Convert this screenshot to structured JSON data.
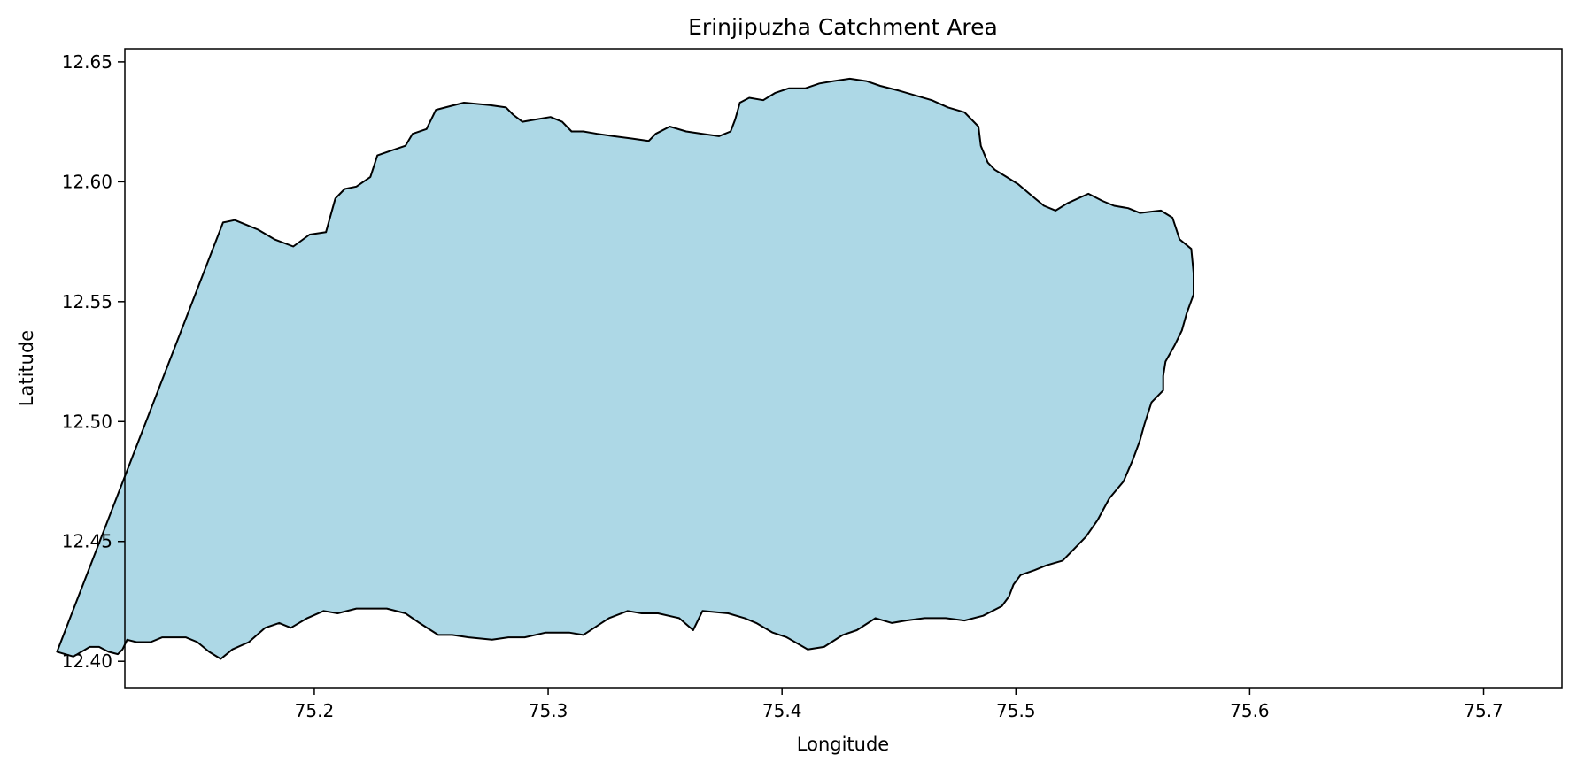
{
  "chart_data": {
    "type": "map",
    "title": "Erinjipuzha Catchment Area",
    "xlabel": "Longitude",
    "ylabel": "Latitude",
    "xlim": [
      75.119,
      75.7335
    ],
    "ylim": [
      12.389,
      12.6555
    ],
    "x_ticks": [
      75.2,
      75.3,
      75.4,
      75.5,
      75.6,
      75.7
    ],
    "x_tick_labels": [
      "75.2",
      "75.3",
      "75.4",
      "75.5",
      "75.6",
      "75.7"
    ],
    "y_ticks": [
      12.4,
      12.45,
      12.5,
      12.55,
      12.6,
      12.65
    ],
    "y_tick_labels": [
      "12.40",
      "12.45",
      "12.50",
      "12.55",
      "12.60",
      "12.65"
    ],
    "grid": false,
    "fill_color": "#add8e6",
    "edge_color": "#000000",
    "polygon_lonlat": [
      [
        75.161,
        12.583
      ],
      [
        75.166,
        12.584
      ],
      [
        75.171,
        12.582
      ],
      [
        75.176,
        12.58
      ],
      [
        75.183,
        12.576
      ],
      [
        75.191,
        12.573
      ],
      [
        75.198,
        12.578
      ],
      [
        75.205,
        12.579
      ],
      [
        75.207,
        12.586
      ],
      [
        75.209,
        12.593
      ],
      [
        75.213,
        12.597
      ],
      [
        75.218,
        12.598
      ],
      [
        75.224,
        12.602
      ],
      [
        75.227,
        12.611
      ],
      [
        75.233,
        12.613
      ],
      [
        75.239,
        12.615
      ],
      [
        75.242,
        12.62
      ],
      [
        75.248,
        12.622
      ],
      [
        75.252,
        12.63
      ],
      [
        75.264,
        12.633
      ],
      [
        75.275,
        12.632
      ],
      [
        75.282,
        12.631
      ],
      [
        75.285,
        12.628
      ],
      [
        75.289,
        12.625
      ],
      [
        75.295,
        12.626
      ],
      [
        75.301,
        12.627
      ],
      [
        75.306,
        12.625
      ],
      [
        75.31,
        12.621
      ],
      [
        75.315,
        12.621
      ],
      [
        75.321,
        12.62
      ],
      [
        75.328,
        12.619
      ],
      [
        75.336,
        12.618
      ],
      [
        75.343,
        12.617
      ],
      [
        75.346,
        12.62
      ],
      [
        75.352,
        12.623
      ],
      [
        75.359,
        12.621
      ],
      [
        75.366,
        12.62
      ],
      [
        75.373,
        12.619
      ],
      [
        75.378,
        12.621
      ],
      [
        75.38,
        12.626
      ],
      [
        75.382,
        12.633
      ],
      [
        75.386,
        12.635
      ],
      [
        75.392,
        12.634
      ],
      [
        75.397,
        12.637
      ],
      [
        75.403,
        12.639
      ],
      [
        75.41,
        12.639
      ],
      [
        75.416,
        12.641
      ],
      [
        75.422,
        12.642
      ],
      [
        75.429,
        12.643
      ],
      [
        75.436,
        12.642
      ],
      [
        75.442,
        12.64
      ],
      [
        75.45,
        12.638
      ],
      [
        75.457,
        12.636
      ],
      [
        75.464,
        12.634
      ],
      [
        75.471,
        12.631
      ],
      [
        75.478,
        12.629
      ],
      [
        75.484,
        12.623
      ],
      [
        75.485,
        12.615
      ],
      [
        75.488,
        12.608
      ],
      [
        75.491,
        12.605
      ],
      [
        75.496,
        12.602
      ],
      [
        75.501,
        12.599
      ],
      [
        75.507,
        12.594
      ],
      [
        75.512,
        12.59
      ],
      [
        75.517,
        12.588
      ],
      [
        75.522,
        12.591
      ],
      [
        75.531,
        12.595
      ],
      [
        75.537,
        12.592
      ],
      [
        75.542,
        12.59
      ],
      [
        75.548,
        12.589
      ],
      [
        75.553,
        12.587
      ],
      [
        75.562,
        12.588
      ],
      [
        75.567,
        12.585
      ],
      [
        75.57,
        12.576
      ],
      [
        75.575,
        12.572
      ],
      [
        75.576,
        12.562
      ],
      [
        75.576,
        12.553
      ],
      [
        75.573,
        12.545
      ],
      [
        75.571,
        12.538
      ],
      [
        75.568,
        12.532
      ],
      [
        75.564,
        12.525
      ],
      [
        75.563,
        12.519
      ],
      [
        75.563,
        12.513
      ],
      [
        75.558,
        12.508
      ],
      [
        75.555,
        12.499
      ],
      [
        75.553,
        12.492
      ],
      [
        75.55,
        12.484
      ],
      [
        75.546,
        12.475
      ],
      [
        75.54,
        12.468
      ],
      [
        75.535,
        12.459
      ],
      [
        75.53,
        12.452
      ],
      [
        75.525,
        12.447
      ],
      [
        75.52,
        12.442
      ],
      [
        75.513,
        12.44
      ],
      [
        75.508,
        12.438
      ],
      [
        75.502,
        12.436
      ],
      [
        75.499,
        12.432
      ],
      [
        75.497,
        12.427
      ],
      [
        75.494,
        12.423
      ],
      [
        75.486,
        12.419
      ],
      [
        75.478,
        12.417
      ],
      [
        75.47,
        12.418
      ],
      [
        75.461,
        12.418
      ],
      [
        75.453,
        12.417
      ],
      [
        75.447,
        12.416
      ],
      [
        75.44,
        12.418
      ],
      [
        75.432,
        12.413
      ],
      [
        75.426,
        12.411
      ],
      [
        75.418,
        12.406
      ],
      [
        75.411,
        12.405
      ],
      [
        75.402,
        12.41
      ],
      [
        75.396,
        12.412
      ],
      [
        75.389,
        12.416
      ],
      [
        75.384,
        12.418
      ],
      [
        75.377,
        12.42
      ],
      [
        75.366,
        12.421
      ],
      [
        75.362,
        12.413
      ],
      [
        75.356,
        12.418
      ],
      [
        75.347,
        12.42
      ],
      [
        75.34,
        12.42
      ],
      [
        75.334,
        12.421
      ],
      [
        75.326,
        12.418
      ],
      [
        75.315,
        12.411
      ],
      [
        75.309,
        12.412
      ],
      [
        75.299,
        12.412
      ],
      [
        75.29,
        12.41
      ],
      [
        75.283,
        12.41
      ],
      [
        75.276,
        12.409
      ],
      [
        75.266,
        12.41
      ],
      [
        75.259,
        12.411
      ],
      [
        75.253,
        12.411
      ],
      [
        75.245,
        12.416
      ],
      [
        75.239,
        12.42
      ],
      [
        75.231,
        12.422
      ],
      [
        75.224,
        12.422
      ],
      [
        75.218,
        12.422
      ],
      [
        75.21,
        12.42
      ],
      [
        75.204,
        12.421
      ],
      [
        75.197,
        12.418
      ],
      [
        75.19,
        12.414
      ],
      [
        75.185,
        12.416
      ],
      [
        75.179,
        12.414
      ],
      [
        75.172,
        12.408
      ],
      [
        75.165,
        12.405
      ],
      [
        75.16,
        12.401
      ],
      [
        75.155,
        12.404
      ],
      [
        75.15,
        12.408
      ],
      [
        75.145,
        12.41
      ],
      [
        75.14,
        12.41
      ],
      [
        75.135,
        12.41
      ],
      [
        75.13,
        12.408
      ],
      [
        75.124,
        12.408
      ],
      [
        75.12,
        12.409
      ],
      [
        75.118,
        12.405
      ],
      [
        75.116,
        12.403
      ],
      [
        75.112,
        12.404
      ],
      [
        75.108,
        12.406
      ],
      [
        75.104,
        12.406
      ],
      [
        75.097,
        12.402
      ],
      [
        75.09,
        12.404
      ]
    ]
  }
}
